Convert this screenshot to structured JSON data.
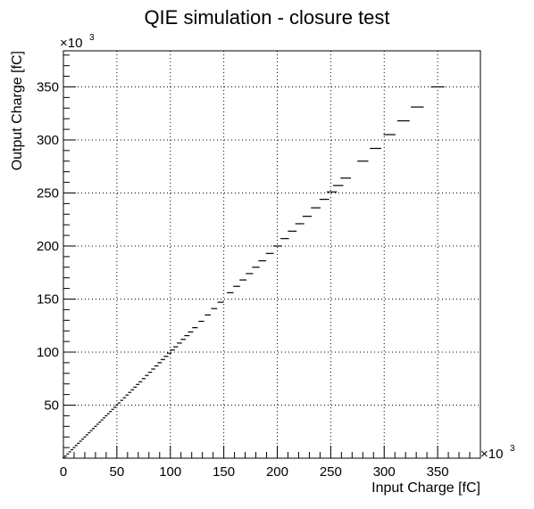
{
  "chart_data": {
    "type": "scatter",
    "title": "QIE simulation - closure test",
    "xlabel": "Input Charge [fC]",
    "ylabel": "Output Charge [fC]",
    "x_multiplier": {
      "base": "×10",
      "exponent": "3"
    },
    "y_multiplier": {
      "base": "×10",
      "exponent": "3"
    },
    "xlim": [
      0,
      390
    ],
    "ylim": [
      0,
      384
    ],
    "x_ticks": [
      0,
      50,
      100,
      150,
      200,
      250,
      300,
      350
    ],
    "y_ticks": [
      50,
      100,
      150,
      200,
      250,
      300,
      350
    ],
    "x_tick_labels": [
      "0",
      "50",
      "100",
      "150",
      "200",
      "250",
      "300",
      "350"
    ],
    "y_tick_labels": [
      "50",
      "100",
      "150",
      "200",
      "250",
      "300",
      "350"
    ],
    "grid": true,
    "marker": "horizontal-dash",
    "series": [
      {
        "points": [
          {
            "x": 0.5,
            "y": 0.5
          },
          {
            "x": 2,
            "y": 2
          },
          {
            "x": 4,
            "y": 4
          },
          {
            "x": 6,
            "y": 6
          },
          {
            "x": 8,
            "y": 8
          },
          {
            "x": 10,
            "y": 10
          },
          {
            "x": 12,
            "y": 12
          },
          {
            "x": 14,
            "y": 14
          },
          {
            "x": 16,
            "y": 16
          },
          {
            "x": 18,
            "y": 18
          },
          {
            "x": 20,
            "y": 20
          },
          {
            "x": 22,
            "y": 22
          },
          {
            "x": 24,
            "y": 24
          },
          {
            "x": 26,
            "y": 26
          },
          {
            "x": 28,
            "y": 28
          },
          {
            "x": 30,
            "y": 30
          },
          {
            "x": 32,
            "y": 32
          },
          {
            "x": 34,
            "y": 34
          },
          {
            "x": 36,
            "y": 36
          },
          {
            "x": 38,
            "y": 38
          },
          {
            "x": 40,
            "y": 40
          },
          {
            "x": 42,
            "y": 42
          },
          {
            "x": 44,
            "y": 44
          },
          {
            "x": 46,
            "y": 46
          },
          {
            "x": 48,
            "y": 48
          },
          {
            "x": 50,
            "y": 50
          },
          {
            "x": 52,
            "y": 52
          },
          {
            "x": 54.5,
            "y": 54.5
          },
          {
            "x": 57,
            "y": 57
          },
          {
            "x": 59.5,
            "y": 59.5
          },
          {
            "x": 62,
            "y": 62
          },
          {
            "x": 64.5,
            "y": 64.5
          },
          {
            "x": 67,
            "y": 67
          },
          {
            "x": 69.5,
            "y": 69.5
          },
          {
            "x": 72,
            "y": 72
          },
          {
            "x": 75,
            "y": 75
          },
          {
            "x": 78,
            "y": 78
          },
          {
            "x": 81,
            "y": 81
          },
          {
            "x": 84,
            "y": 84
          },
          {
            "x": 87,
            "y": 87
          },
          {
            "x": 90,
            "y": 90
          },
          {
            "x": 93,
            "y": 93
          },
          {
            "x": 96,
            "y": 96
          },
          {
            "x": 99,
            "y": 99
          },
          {
            "x": 102,
            "y": 102
          },
          {
            "x": 105,
            "y": 105
          },
          {
            "x": 108.5,
            "y": 108.5
          },
          {
            "x": 112,
            "y": 112
          },
          {
            "x": 115.5,
            "y": 115.5
          },
          {
            "x": 119,
            "y": 119
          },
          {
            "x": 123,
            "y": 123
          },
          {
            "x": 129,
            "y": 129
          },
          {
            "x": 135,
            "y": 135
          },
          {
            "x": 141,
            "y": 141
          },
          {
            "x": 147,
            "y": 147
          },
          {
            "x": 156,
            "y": 156
          },
          {
            "x": 162,
            "y": 162
          },
          {
            "x": 168,
            "y": 168
          },
          {
            "x": 174,
            "y": 174
          },
          {
            "x": 180,
            "y": 180
          },
          {
            "x": 186,
            "y": 186
          },
          {
            "x": 193,
            "y": 193
          },
          {
            "x": 200,
            "y": 200
          },
          {
            "x": 207,
            "y": 207
          },
          {
            "x": 214,
            "y": 214
          },
          {
            "x": 221,
            "y": 221
          },
          {
            "x": 228,
            "y": 228
          },
          {
            "x": 236,
            "y": 236
          },
          {
            "x": 244,
            "y": 244
          },
          {
            "x": 251,
            "y": 251
          },
          {
            "x": 257,
            "y": 257
          },
          {
            "x": 264,
            "y": 264
          },
          {
            "x": 280,
            "y": 280
          },
          {
            "x": 292,
            "y": 292
          },
          {
            "x": 305,
            "y": 305
          },
          {
            "x": 318,
            "y": 318
          },
          {
            "x": 331,
            "y": 331
          },
          {
            "x": 350,
            "y": 350
          }
        ]
      }
    ]
  },
  "colors": {
    "background": "#ffffff",
    "axis": "#000000",
    "grid": "#000000",
    "marker": "#000000"
  }
}
